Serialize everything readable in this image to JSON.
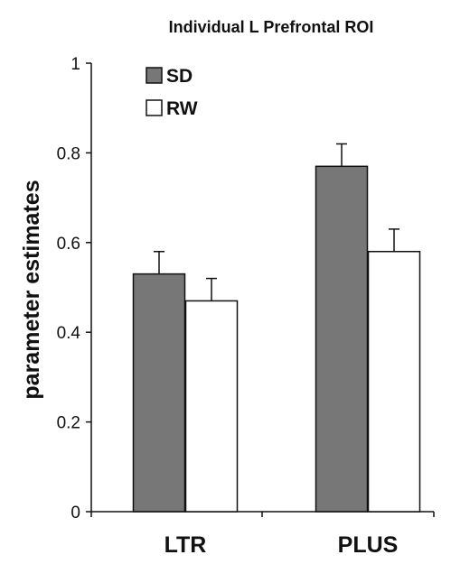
{
  "chart_data": {
    "type": "bar",
    "title": "Individual L Prefrontal ROI",
    "xlabel": "",
    "ylabel": "parameter estimates",
    "ylim": [
      0,
      1
    ],
    "yticks": [
      "0",
      "0.2",
      "0.4",
      "0.6",
      "0.8",
      "1"
    ],
    "categories": [
      "LTR",
      "PLUS"
    ],
    "series": [
      {
        "name": "SD",
        "values": [
          0.53,
          0.77
        ],
        "errors": [
          0.05,
          0.05
        ],
        "color": "#777777"
      },
      {
        "name": "RW",
        "values": [
          0.47,
          0.58
        ],
        "errors": [
          0.05,
          0.05
        ],
        "color": "#ffffff"
      }
    ],
    "grid": false,
    "legend_position": "top-left",
    "error_bars": "upper"
  }
}
